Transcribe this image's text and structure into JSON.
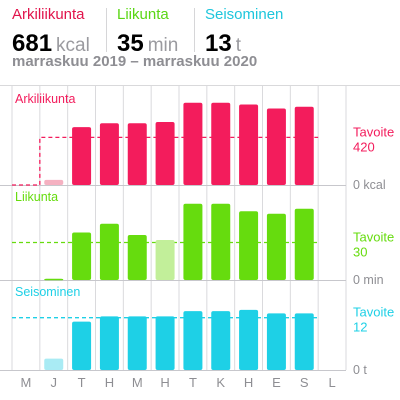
{
  "header": {
    "stats": [
      {
        "label": "Arkiliikunta",
        "value": "681",
        "unit": "kcal",
        "color": "#e1134b"
      },
      {
        "label": "Liikunta",
        "value": "35",
        "unit": "min",
        "color": "#5ad614"
      },
      {
        "label": "Seisominen",
        "value": "13",
        "unit": "t",
        "color": "#1ec6dc"
      }
    ],
    "date_range": "marraskuu 2019 – marraskuu 2020"
  },
  "chart_data": {
    "type": "bar",
    "categories": [
      "M",
      "J",
      "T",
      "H",
      "M",
      "H",
      "T",
      "K",
      "H",
      "E",
      "S",
      "L"
    ],
    "series": [
      {
        "name": "Arkiliikunta",
        "unit": "kcal",
        "color": "#f31c5c",
        "color_faded": "#f5b1c1",
        "faded": [
          false,
          true,
          false,
          false,
          false,
          false,
          false,
          false,
          false,
          false,
          false,
          false
        ],
        "values": [
          null,
          45,
          510,
          545,
          545,
          555,
          725,
          725,
          710,
          675,
          690,
          null
        ],
        "goal_steps": [
          0,
          420,
          420,
          420,
          420,
          420,
          420,
          420,
          420,
          420,
          420,
          null
        ],
        "max": 820,
        "goal_label_top": "Tavoite",
        "goal_label_bottom": "420",
        "zero_label": "0 kcal"
      },
      {
        "name": "Liikunta",
        "unit": "min",
        "color": "#66dc0e",
        "color_faded": "#c2ef9a",
        "faded": [
          false,
          false,
          false,
          false,
          false,
          true,
          false,
          false,
          false,
          false,
          false,
          false
        ],
        "values": [
          null,
          1,
          38,
          45,
          36,
          32,
          61,
          61,
          55,
          53,
          57,
          null
        ],
        "goal_steps": [
          30,
          30,
          30,
          30,
          30,
          30,
          30,
          30,
          30,
          30,
          30,
          null
        ],
        "max": 72,
        "goal_label_top": "Tavoite",
        "goal_label_bottom": "30",
        "zero_label": "0 min"
      },
      {
        "name": "Seisominen",
        "unit": "t",
        "color": "#1ed0e6",
        "color_faded": "#a9ebf4",
        "faded": [
          false,
          true,
          false,
          false,
          false,
          false,
          false,
          false,
          false,
          false,
          false,
          false
        ],
        "values": [
          null,
          2.6,
          11.1,
          12.3,
          12.3,
          12.3,
          13.5,
          13.5,
          13.8,
          13.0,
          13.0,
          null
        ],
        "goal_steps": [
          12,
          12,
          12,
          12,
          12,
          12,
          12,
          12,
          12,
          12,
          12,
          null
        ],
        "max": 19.5,
        "goal_label_top": "Tavoite",
        "goal_label_bottom": "12",
        "zero_label": "0 t"
      }
    ],
    "colors": {
      "gridline": "#dadadd",
      "axis_text": "#8e8e93",
      "baseline": "#c7c7cc"
    }
  }
}
